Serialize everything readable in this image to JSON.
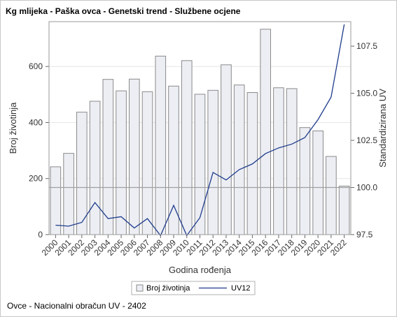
{
  "title": "Kg mlijeka - Paška ovca - Genetski trend - Službene ocjene",
  "footnote": "Ovce - Nacionalni obračun UV - 2402",
  "chart_data": {
    "type": "bar+line",
    "categories": [
      "2000",
      "2001",
      "2002",
      "2003",
      "2004",
      "2005",
      "2006",
      "2007",
      "2008",
      "2009",
      "2010",
      "2011",
      "2012",
      "2013",
      "2014",
      "2015",
      "2016",
      "2017",
      "2018",
      "2019",
      "2020",
      "2021",
      "2022"
    ],
    "series": [
      {
        "name": "Broj životinja",
        "type": "bar",
        "axis": "left",
        "values": [
          242,
          290,
          437,
          476,
          554,
          513,
          555,
          510,
          637,
          530,
          621,
          501,
          515,
          606,
          534,
          507,
          733,
          524,
          521,
          382,
          370,
          279,
          173
        ]
      },
      {
        "name": "UV12",
        "type": "line",
        "axis": "right",
        "values": [
          98.0,
          97.95,
          98.15,
          99.2,
          98.35,
          98.45,
          97.85,
          98.35,
          97.45,
          99.05,
          97.45,
          98.4,
          100.8,
          100.4,
          100.95,
          101.25,
          101.8,
          102.1,
          102.3,
          102.65,
          103.6,
          104.8,
          108.65
        ]
      }
    ],
    "xlabel": "Godina rođenja",
    "ylabel": "Broj životinja",
    "y2label": "Standardizirana UV",
    "ylim": [
      0,
      760
    ],
    "y2lim": [
      97.5,
      108.8
    ],
    "yticks": [
      0,
      200,
      400,
      600
    ],
    "y2ticks": [
      97.5,
      100.0,
      102.5,
      105.0,
      107.5
    ],
    "reference_line_y2": 100.0,
    "grid": true,
    "legend": "bottom",
    "colors": {
      "bar_fill": "#eceef4",
      "bar_stroke": "#8a8a8a",
      "line": "#1f3c8c",
      "ref": "#a0a0a0"
    }
  }
}
